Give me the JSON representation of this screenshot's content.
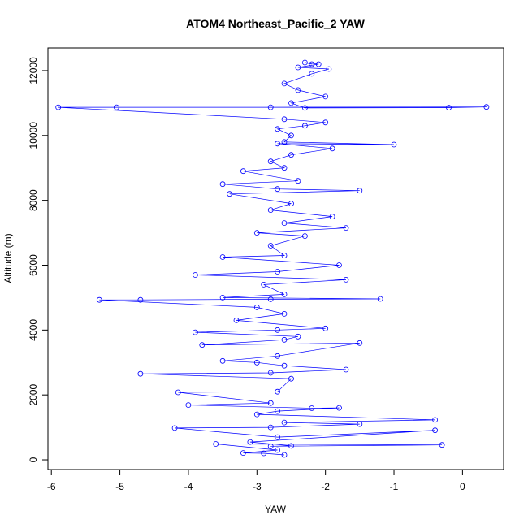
{
  "chart_data": {
    "type": "scatter",
    "title": "ATOM4 Northeast_Pacific_2 YAW",
    "xlabel": "YAW",
    "ylabel": "Altitude (m)",
    "xlim": [
      -6.05,
      0.6
    ],
    "ylim": [
      -300,
      12700
    ],
    "xticks": [
      -6,
      -5,
      -4,
      -3,
      -2,
      -1,
      0
    ],
    "yticks": [
      0,
      2000,
      4000,
      6000,
      8000,
      10000,
      12000
    ],
    "grid": false,
    "legend": "none",
    "color": "#0000ff",
    "marker": "open-circle",
    "connected": true,
    "series": [
      {
        "points": [
          [
            -2.6,
            150
          ],
          [
            -2.9,
            200
          ],
          [
            -3.2,
            210
          ],
          [
            -2.7,
            300
          ],
          [
            -3.6,
            490
          ],
          [
            -0.3,
            460
          ],
          [
            -2.8,
            420
          ],
          [
            -2.5,
            430
          ],
          [
            -3.1,
            550
          ],
          [
            -0.4,
            910
          ],
          [
            -2.7,
            700
          ],
          [
            -4.2,
            980
          ],
          [
            -2.8,
            1000
          ],
          [
            -1.5,
            1100
          ],
          [
            -2.6,
            1150
          ],
          [
            -0.4,
            1230
          ],
          [
            -3.0,
            1400
          ],
          [
            -2.7,
            1500
          ],
          [
            -1.8,
            1600
          ],
          [
            -2.2,
            1590
          ],
          [
            -4.0,
            1690
          ],
          [
            -2.8,
            1750
          ],
          [
            -4.15,
            2080
          ],
          [
            -2.7,
            2100
          ],
          [
            -2.5,
            2500
          ],
          [
            -4.7,
            2650
          ],
          [
            -2.8,
            2680
          ],
          [
            -1.7,
            2780
          ],
          [
            -2.6,
            2900
          ],
          [
            -3.0,
            3000
          ],
          [
            -3.5,
            3050
          ],
          [
            -2.7,
            3200
          ],
          [
            -1.5,
            3600
          ],
          [
            -3.8,
            3540
          ],
          [
            -2.6,
            3700
          ],
          [
            -2.4,
            3800
          ],
          [
            -3.9,
            3930
          ],
          [
            -2.7,
            4000
          ],
          [
            -2.0,
            4050
          ],
          [
            -3.3,
            4300
          ],
          [
            -2.6,
            4500
          ],
          [
            -3.0,
            4700
          ],
          [
            -5.3,
            4930
          ],
          [
            -4.7,
            4930
          ],
          [
            -2.8,
            4950
          ],
          [
            -1.2,
            4960
          ],
          [
            -3.5,
            5000
          ],
          [
            -2.6,
            5100
          ],
          [
            -2.9,
            5400
          ],
          [
            -1.7,
            5550
          ],
          [
            -3.9,
            5700
          ],
          [
            -2.7,
            5800
          ],
          [
            -1.8,
            6000
          ],
          [
            -3.5,
            6250
          ],
          [
            -2.6,
            6300
          ],
          [
            -2.8,
            6600
          ],
          [
            -2.3,
            6900
          ],
          [
            -3.0,
            7000
          ],
          [
            -1.7,
            7150
          ],
          [
            -2.6,
            7300
          ],
          [
            -1.9,
            7500
          ],
          [
            -2.8,
            7700
          ],
          [
            -2.5,
            7900
          ],
          [
            -3.4,
            8200
          ],
          [
            -1.5,
            8300
          ],
          [
            -2.7,
            8350
          ],
          [
            -3.5,
            8500
          ],
          [
            -2.4,
            8600
          ],
          [
            -3.2,
            8900
          ],
          [
            -2.6,
            9000
          ],
          [
            -2.8,
            9200
          ],
          [
            -2.5,
            9400
          ],
          [
            -1.9,
            9600
          ],
          [
            -2.7,
            9750
          ],
          [
            -1.0,
            9720
          ],
          [
            -2.6,
            9800
          ],
          [
            -2.5,
            10000
          ],
          [
            -2.7,
            10200
          ],
          [
            -2.3,
            10300
          ],
          [
            -2.0,
            10400
          ],
          [
            -2.6,
            10500
          ],
          [
            -5.9,
            10870
          ],
          [
            -5.05,
            10870
          ],
          [
            -2.8,
            10870
          ],
          [
            0.35,
            10880
          ],
          [
            -0.2,
            10860
          ],
          [
            -2.3,
            10850
          ],
          [
            -2.5,
            11000
          ],
          [
            -2.0,
            11200
          ],
          [
            -2.4,
            11400
          ],
          [
            -2.6,
            11600
          ],
          [
            -2.2,
            11900
          ],
          [
            -1.95,
            12050
          ],
          [
            -2.4,
            12100
          ],
          [
            -2.1,
            12200
          ],
          [
            -2.3,
            12250
          ],
          [
            -2.2,
            12200
          ]
        ]
      }
    ]
  }
}
